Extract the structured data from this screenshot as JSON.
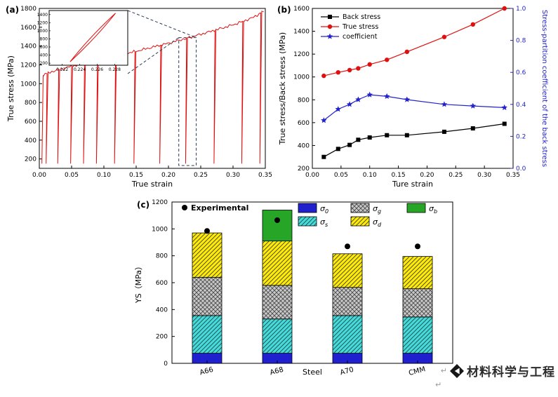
{
  "watermark": {
    "text": "材料科学与工程",
    "return_glyph": "↵"
  },
  "chart_data": [
    {
      "id": "a",
      "panel_label": "(a)",
      "type": "line",
      "xlabel": "True strain",
      "ylabel": "True stress (MPa)",
      "xlim": [
        0,
        0.35
      ],
      "ylim": [
        100,
        1800
      ],
      "xticks": [
        0,
        0.05,
        0.1,
        0.15,
        0.2,
        0.25,
        0.3,
        0.35
      ],
      "yticks": [
        200,
        400,
        600,
        800,
        1000,
        1200,
        1400,
        1600,
        1800
      ],
      "line_color": "#e01010",
      "envelope": [
        [
          0.006,
          1090
        ],
        [
          0.02,
          1130
        ],
        [
          0.05,
          1185
        ],
        [
          0.08,
          1230
        ],
        [
          0.1,
          1265
        ],
        [
          0.15,
          1345
        ],
        [
          0.2,
          1430
        ],
        [
          0.25,
          1525
        ],
        [
          0.3,
          1625
        ],
        [
          0.33,
          1700
        ],
        [
          0.35,
          1780
        ]
      ],
      "unload_strains": [
        0.012,
        0.03,
        0.05,
        0.07,
        0.09,
        0.118,
        0.148,
        0.188,
        0.228,
        0.272,
        0.315,
        0.343
      ],
      "unload_min_stress": 150,
      "inset": {
        "xlim": [
          0.2205,
          0.2295
        ],
        "ylim": [
          150,
          1500
        ],
        "xticks": [
          0.222,
          0.224,
          0.226,
          0.228
        ],
        "yticks": [
          200,
          400,
          600,
          800,
          1000,
          1200,
          1400
        ],
        "loop_top": [
          0.2281,
          1435
        ],
        "loop_bottom": [
          0.2229,
          235
        ]
      }
    },
    {
      "id": "b",
      "panel_label": "(b)",
      "type": "line",
      "xlabel": "Ture strain",
      "ylabel_left": "True stress/Back stress (MPa)",
      "ylabel_right": "Stress-partition coefficient of the back stress",
      "right_axis_color": "#2323cc",
      "xlim": [
        0,
        0.35
      ],
      "ylim_left": [
        200,
        1600
      ],
      "ylim_right": [
        0,
        1
      ],
      "xticks": [
        0,
        0.05,
        0.1,
        0.15,
        0.2,
        0.25,
        0.3,
        0.35
      ],
      "yticks_left": [
        200,
        400,
        600,
        800,
        1000,
        1200,
        1400,
        1600
      ],
      "yticks_right": [
        0,
        0.2,
        0.4,
        0.6,
        0.8,
        1
      ],
      "x": [
        0.02,
        0.045,
        0.065,
        0.08,
        0.1,
        0.13,
        0.165,
        0.23,
        0.28,
        0.335
      ],
      "series": [
        {
          "name": "Back stress",
          "marker": "square",
          "color": "#000000",
          "axis": "left",
          "values": [
            300,
            370,
            405,
            450,
            470,
            490,
            490,
            520,
            550,
            590
          ]
        },
        {
          "name": "True stress",
          "marker": "circle",
          "color": "#e01010",
          "axis": "left",
          "values": [
            1010,
            1040,
            1060,
            1075,
            1110,
            1150,
            1220,
            1350,
            1460,
            1600
          ]
        },
        {
          "name": "coefficient",
          "marker": "star",
          "color": "#2323cc",
          "axis": "right",
          "values": [
            0.3,
            0.37,
            0.4,
            0.43,
            0.46,
            0.45,
            0.43,
            0.4,
            0.39,
            0.38
          ]
        }
      ]
    },
    {
      "id": "c",
      "panel_label": "(c)",
      "type": "bar",
      "xlabel": "Steel",
      "ylabel": "YS（MPa）",
      "categories": [
        "A66",
        "A68",
        "A70",
        "CMM"
      ],
      "ylim": [
        0,
        1200
      ],
      "yticks": [
        0,
        200,
        400,
        600,
        800,
        1000,
        1200
      ],
      "stacks": [
        {
          "symbol": "σ",
          "sub": "0",
          "color": "#2020cf",
          "pattern": "none",
          "values": [
            75,
            75,
            75,
            75
          ]
        },
        {
          "symbol": "σ",
          "sub": "s",
          "color": "#3fdede",
          "pattern": "diagonal",
          "values": [
            280,
            255,
            280,
            270
          ]
        },
        {
          "symbol": "σ",
          "sub": "g",
          "color": "#c9c9c9",
          "pattern": "cross",
          "values": [
            285,
            250,
            210,
            210
          ]
        },
        {
          "symbol": "σ",
          "sub": "d",
          "color": "#ffec00",
          "pattern": "diagonal",
          "values": [
            330,
            330,
            250,
            240
          ]
        },
        {
          "symbol": "σ",
          "sub": "b",
          "color": "#27a527",
          "pattern": "none",
          "values": [
            0,
            230,
            0,
            0
          ]
        }
      ],
      "experimental": {
        "name": "Experimental",
        "marker": "circle",
        "color": "#000000",
        "values": [
          985,
          1065,
          870,
          870
        ]
      }
    }
  ]
}
